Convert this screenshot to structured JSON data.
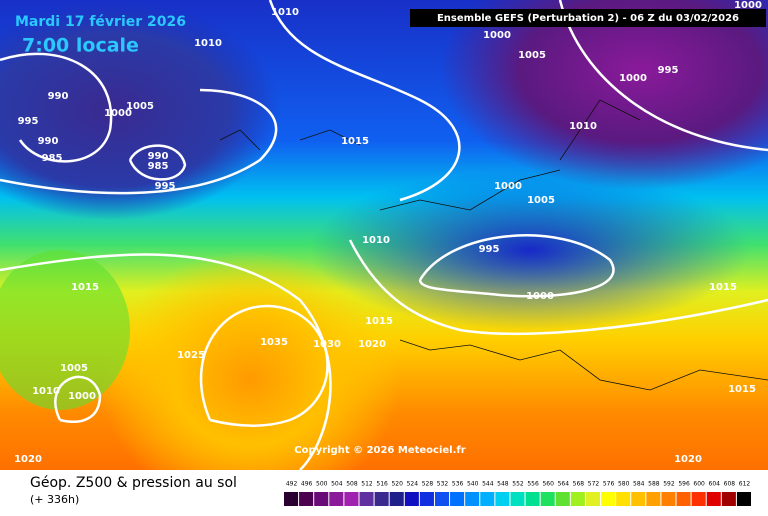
{
  "header": {
    "date": "Mardi 17 février 2026",
    "time": "7:00 locale",
    "run": "Ensemble GEFS  (Perturbation 2)  -  06 Z du 03/02/2026"
  },
  "isobar_labels": [
    "1010",
    "1010",
    "1000",
    "1005",
    "995",
    "1000",
    "1000",
    "990",
    "1005",
    "1000",
    "995",
    "1010",
    "990",
    "1015",
    "985",
    "990",
    "985",
    "995",
    "1000",
    "1005",
    "1010",
    "995",
    "1015",
    "1000",
    "1015",
    "1015",
    "1035",
    "1030",
    "1020",
    "1025",
    "1005",
    "1010",
    "1015",
    "1000",
    "1020",
    "1020"
  ],
  "copyright": "Copyright © 2026 Meteociel.fr",
  "footer": {
    "title": "Géop. Z500 & pression au sol",
    "lead": "(+ 336h)"
  },
  "scale": [
    {
      "label": "492",
      "color": "#2a0030"
    },
    {
      "label": "496",
      "color": "#4b0050"
    },
    {
      "label": "500",
      "color": "#6a0a78"
    },
    {
      "label": "504",
      "color": "#8a1a9a"
    },
    {
      "label": "508",
      "color": "#a020b0"
    },
    {
      "label": "512",
      "color": "#6030a0"
    },
    {
      "label": "516",
      "color": "#3a2a90"
    },
    {
      "label": "520",
      "color": "#20208a"
    },
    {
      "label": "524",
      "color": "#1010c0"
    },
    {
      "label": "528",
      "color": "#1030e0"
    },
    {
      "label": "532",
      "color": "#1050f0"
    },
    {
      "label": "536",
      "color": "#0070ff"
    },
    {
      "label": "540",
      "color": "#0090ff"
    },
    {
      "label": "544",
      "color": "#00b0ff"
    },
    {
      "label": "548",
      "color": "#00d0f0"
    },
    {
      "label": "552",
      "color": "#00e0c0"
    },
    {
      "label": "556",
      "color": "#00e090"
    },
    {
      "label": "560",
      "color": "#20e060"
    },
    {
      "label": "564",
      "color": "#60e030"
    },
    {
      "label": "568",
      "color": "#a0f020"
    },
    {
      "label": "572",
      "color": "#e0f020"
    },
    {
      "label": "576",
      "color": "#ffff00"
    },
    {
      "label": "580",
      "color": "#ffe000"
    },
    {
      "label": "584",
      "color": "#ffc000"
    },
    {
      "label": "588",
      "color": "#ffa000"
    },
    {
      "label": "592",
      "color": "#ff8000"
    },
    {
      "label": "596",
      "color": "#ff6000"
    },
    {
      "label": "600",
      "color": "#ff3000"
    },
    {
      "label": "604",
      "color": "#e00000"
    },
    {
      "label": "608",
      "color": "#a00000"
    },
    {
      "label": "612",
      "color": "#000000"
    }
  ]
}
